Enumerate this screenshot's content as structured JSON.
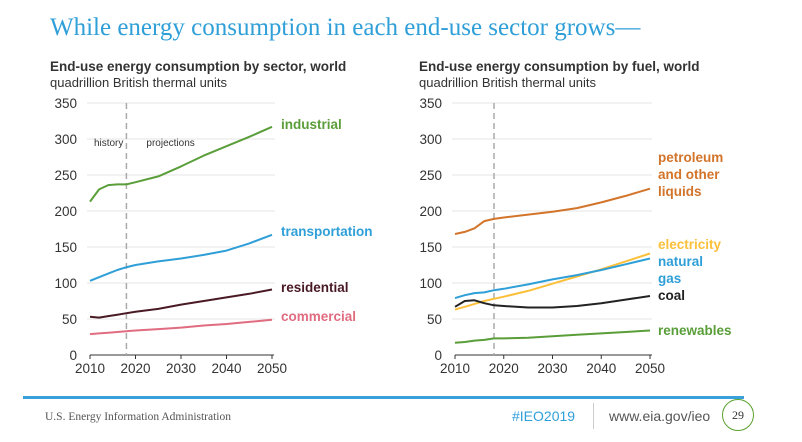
{
  "slide": {
    "title": "While energy consumption in each end-use sector grows—",
    "footer": {
      "org": "U.S. Energy Information Administration",
      "hashtag": "#IEO2019",
      "url": "www.eia.gov/ieo",
      "page_number": "29"
    },
    "colors": {
      "accent": "#3aa0d9",
      "page_circle": "#5aa02c"
    }
  },
  "chart_data": [
    {
      "type": "line",
      "title": "End-use energy consumption by sector, world",
      "subtitle": "quadrillion British thermal units",
      "xlabel": "",
      "ylabel": "",
      "ylim": [
        0,
        350
      ],
      "xlim": [
        2010,
        2050
      ],
      "yticks": [
        "0",
        "50",
        "100",
        "150",
        "200",
        "250",
        "300",
        "350"
      ],
      "xticks": [
        "2010",
        "2020",
        "2030",
        "2040",
        "2050"
      ],
      "grid": true,
      "divider_year": 2018,
      "annotations": [
        "history",
        "projections"
      ],
      "x": [
        2010,
        2012,
        2014,
        2016,
        2018,
        2020,
        2025,
        2030,
        2035,
        2040,
        2045,
        2050
      ],
      "series": [
        {
          "name": "industrial",
          "color": "#5a9e3a",
          "values": [
            213,
            230,
            236,
            237,
            237,
            240,
            248,
            262,
            277,
            290,
            303,
            317
          ]
        },
        {
          "name": "transportation",
          "color": "#2f9fd8",
          "values": [
            103,
            108,
            113,
            118,
            122,
            125,
            130,
            134,
            139,
            145,
            155,
            167
          ]
        },
        {
          "name": "residential",
          "color": "#4a1a24",
          "values": [
            53,
            52,
            54,
            56,
            58,
            60,
            64,
            70,
            75,
            80,
            85,
            91
          ]
        },
        {
          "name": "commercial",
          "color": "#e06c80",
          "values": [
            29,
            30,
            31,
            32,
            33,
            34,
            36,
            38,
            41,
            43,
            46,
            49
          ]
        }
      ]
    },
    {
      "type": "line",
      "title": "End-use energy consumption by fuel, world",
      "subtitle": "quadrillion British thermal units",
      "xlabel": "",
      "ylabel": "",
      "ylim": [
        0,
        350
      ],
      "xlim": [
        2010,
        2050
      ],
      "yticks": [
        "0",
        "50",
        "100",
        "150",
        "200",
        "250",
        "300",
        "350"
      ],
      "xticks": [
        "2010",
        "2020",
        "2030",
        "2040",
        "2050"
      ],
      "grid": true,
      "divider_year": 2018,
      "x": [
        2010,
        2012,
        2014,
        2016,
        2018,
        2020,
        2025,
        2030,
        2035,
        2040,
        2045,
        2050
      ],
      "series": [
        {
          "name": "petroleum and other liquids",
          "label_lines": [
            "petroleum",
            "and other",
            "liquids"
          ],
          "color": "#d2742a",
          "values": [
            168,
            171,
            176,
            186,
            189,
            191,
            195,
            199,
            204,
            212,
            221,
            231
          ]
        },
        {
          "name": "electricity",
          "label_lines": [
            "electricity"
          ],
          "color": "#fbbf3a",
          "values": [
            63,
            67,
            71,
            75,
            78,
            81,
            89,
            99,
            109,
            119,
            130,
            141
          ]
        },
        {
          "name": "natural gas",
          "label_lines": [
            "natural",
            "gas"
          ],
          "color": "#2f9fd8",
          "values": [
            79,
            83,
            86,
            87,
            90,
            92,
            98,
            105,
            111,
            118,
            126,
            134
          ]
        },
        {
          "name": "coal",
          "label_lines": [
            "coal"
          ],
          "color": "#222222",
          "values": [
            67,
            75,
            76,
            72,
            69,
            68,
            66,
            66,
            68,
            72,
            77,
            82
          ]
        },
        {
          "name": "renewables",
          "label_lines": [
            "renewables"
          ],
          "color": "#5a9e3a",
          "values": [
            17,
            18,
            20,
            21,
            23,
            23,
            24,
            26,
            28,
            30,
            32,
            34
          ]
        }
      ]
    }
  ]
}
